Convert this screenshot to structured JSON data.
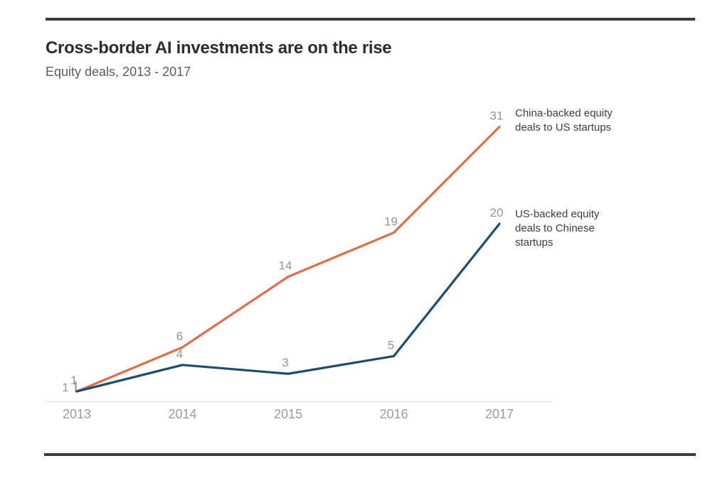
{
  "window": {
    "background": "#ffffff",
    "rule_color": "#3b3b3b"
  },
  "header": {
    "title": "Cross-border AI investments are on the rise",
    "subtitle": "Equity deals, 2013 - 2017",
    "title_color": "#2d2d2d",
    "subtitle_color": "#5c5c5c"
  },
  "chart_data": {
    "type": "line",
    "title": "Cross-border AI investments are on the rise",
    "subtitle": "Equity deals, 2013 - 2017",
    "categories": [
      "2013",
      "2014",
      "2015",
      "2016",
      "2017"
    ],
    "series": [
      {
        "name": "China-backed equity deals to US startups",
        "values": [
          1,
          6,
          14,
          19,
          31
        ],
        "color": "#e06e45"
      },
      {
        "name": "US-backed equity deals to Chinese startups",
        "values": [
          1,
          4,
          3,
          5,
          20
        ],
        "color": "#1e4c6e"
      }
    ],
    "xlabel": "",
    "ylabel": "",
    "ylim": [
      0,
      33
    ],
    "grid": false,
    "axis_baseline_only": true,
    "data_labels": true,
    "legend_position": "right-of-last-points",
    "colors": {
      "data_label": "#949494",
      "axis_label": "#9b9b9b",
      "axis_line": "#e4e4e4",
      "legend_text": "#3d3d3d",
      "tick_mark": "#8f8f8f"
    }
  }
}
